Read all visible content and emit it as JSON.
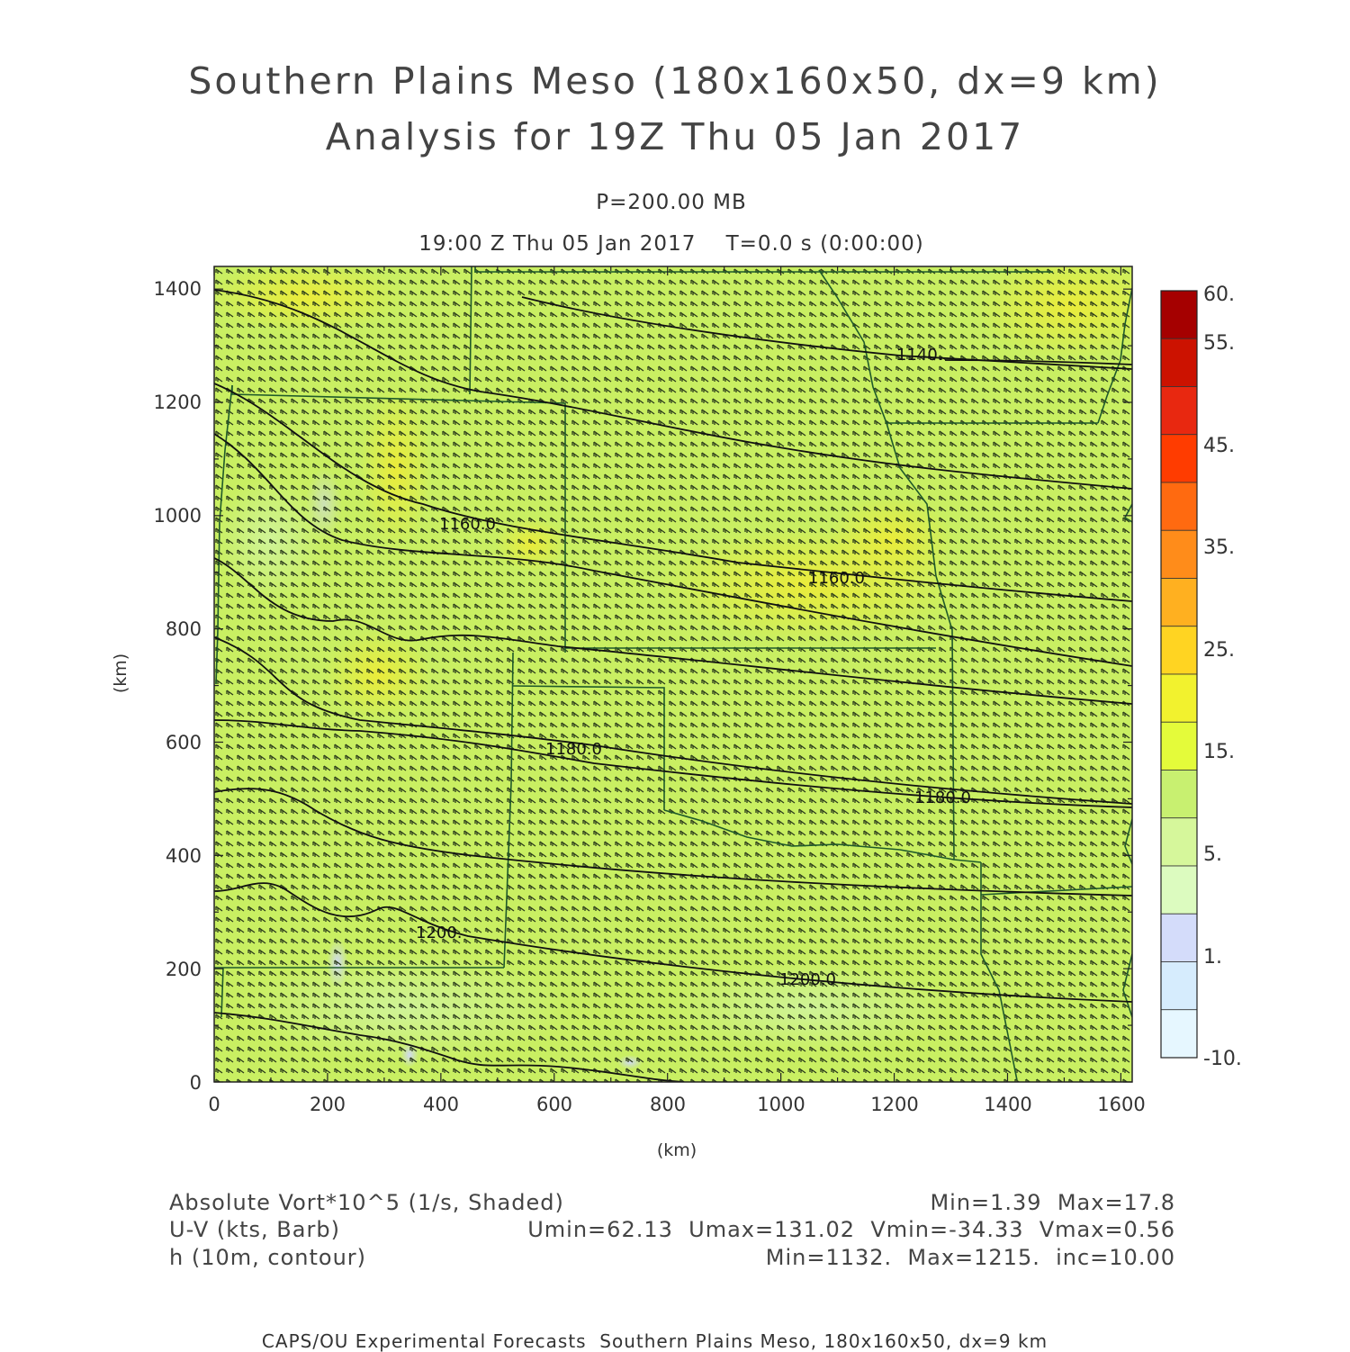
{
  "header": {
    "title_line1": "Southern Plains Meso (180x160x50, dx=9 km)",
    "title_line2": "Analysis for 19Z Thu 05 Jan 2017",
    "level": "P=200.00 MB",
    "time_line": "19:00 Z Thu 05 Jan 2017    T=0.0 s (0:00:00)"
  },
  "axes": {
    "x_ticks": [
      "0",
      "200",
      "400",
      "600",
      "800",
      "1000",
      "1200",
      "1400",
      "1600"
    ],
    "y_ticks": [
      "0",
      "200",
      "400",
      "600",
      "800",
      "1000",
      "1200",
      "1400"
    ],
    "x_label": "(km)",
    "y_label": "(km)",
    "x_range": [
      0,
      1620
    ],
    "y_range": [
      0,
      1440
    ]
  },
  "colorbar": {
    "labels": [
      "60.",
      "55.",
      "45.",
      "35.",
      "25.",
      "15.",
      "5.",
      "1.",
      "-10."
    ],
    "colors": [
      "#a50000",
      "#cc1200",
      "#e82810",
      "#ff3c00",
      "#ff6a10",
      "#ff8c1a",
      "#ffb020",
      "#ffd422",
      "#f2f22e",
      "#e4fb3a",
      "#c8f070",
      "#d6f79b",
      "#dcfbbf",
      "#d4dcfa",
      "#d6ecfd",
      "#e6f7ff"
    ]
  },
  "contours": {
    "labels": [
      "1140.",
      "1160.0",
      "1160.0",
      "1180.0",
      "1180.0",
      "1200.",
      "1200.0"
    ]
  },
  "legend": {
    "field1": "Absolute Vort*10^5 (1/s, Shaded)",
    "field1_stats": "Min=1.39  Max=17.8",
    "field2": "U-V (kts, Barb)",
    "field2_stats": "Umin=62.13  Umax=131.02  Vmin=-34.33  Vmax=0.56",
    "field3": "h (10m, contour)",
    "field3_stats": "Min=1132.  Max=1215.  inc=10.00"
  },
  "credit": "CAPS/OU Experimental Forecasts  Southern Plains Meso, 180x160x50, dx=9 km"
}
